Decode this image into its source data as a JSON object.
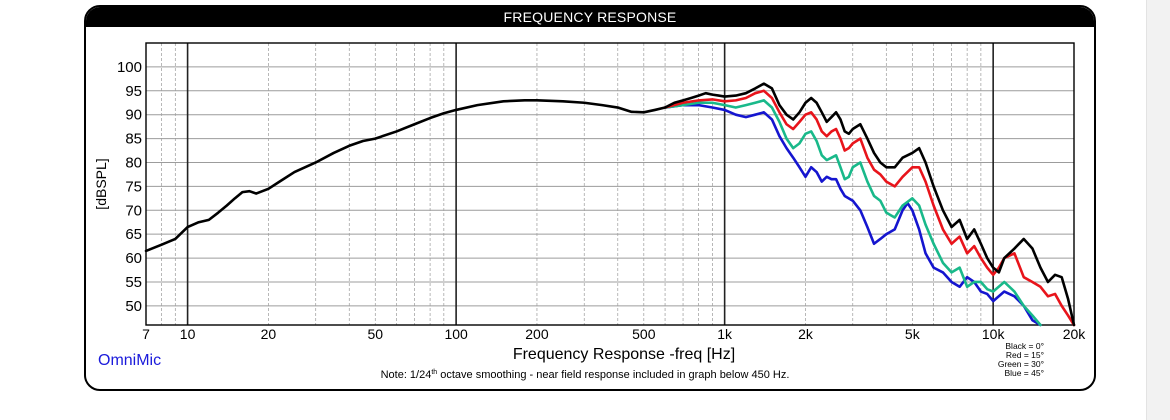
{
  "header": {
    "title": "FREQUENCY RESPONSE"
  },
  "brand": {
    "label": "OmniMic",
    "color": "#1a1adb"
  },
  "note": {
    "prefix": "Note: 1/24",
    "superscript": "th",
    "suffix": " octave smoothing - near field response included in graph below 450 Hz."
  },
  "legend": [
    {
      "label": "Black = 0°",
      "color": "#000000"
    },
    {
      "label": "Red = 15°",
      "color": "#e8141b"
    },
    {
      "label": "Green = 30°",
      "color": "#19b98a"
    },
    {
      "label": "Blue = 45°",
      "color": "#1515cf"
    }
  ],
  "chart_data": {
    "type": "line",
    "xlabel": "Frequency Response -freq [Hz]",
    "ylabel": "[dBSPL]",
    "x_scale": "log",
    "xlim": [
      7,
      20000
    ],
    "ylim": [
      46,
      105
    ],
    "x_ticks": [
      7,
      10,
      20,
      50,
      100,
      200,
      500,
      1000,
      2000,
      5000,
      10000,
      20000
    ],
    "x_tick_labels": [
      "7",
      "10",
      "20",
      "50",
      "100",
      "200",
      "500",
      "1k",
      "2k",
      "5k",
      "10k",
      "20k"
    ],
    "y_ticks": [
      50,
      55,
      60,
      65,
      70,
      75,
      80,
      85,
      90,
      95,
      100
    ],
    "y_tick_labels": [
      "50",
      "55",
      "60",
      "65",
      "70",
      "75",
      "80",
      "85",
      "90",
      "95",
      "100"
    ],
    "grid": true,
    "legend_position": "bottom-right",
    "series": [
      {
        "name": "Black = 0°",
        "color": "#000000",
        "points": [
          [
            7,
            61.5
          ],
          [
            8,
            62.8
          ],
          [
            9,
            64
          ],
          [
            10,
            66.5
          ],
          [
            11,
            67.5
          ],
          [
            12,
            68
          ],
          [
            13,
            69.5
          ],
          [
            14,
            71
          ],
          [
            15,
            72.5
          ],
          [
            16,
            73.8
          ],
          [
            17,
            74
          ],
          [
            18,
            73.5
          ],
          [
            20,
            74.5
          ],
          [
            22,
            76
          ],
          [
            25,
            78
          ],
          [
            30,
            80
          ],
          [
            35,
            82
          ],
          [
            40,
            83.5
          ],
          [
            45,
            84.5
          ],
          [
            50,
            85
          ],
          [
            60,
            86.5
          ],
          [
            70,
            88
          ],
          [
            80,
            89.3
          ],
          [
            90,
            90.3
          ],
          [
            100,
            91
          ],
          [
            120,
            92
          ],
          [
            150,
            92.8
          ],
          [
            180,
            93
          ],
          [
            200,
            93
          ],
          [
            250,
            92.8
          ],
          [
            300,
            92.5
          ],
          [
            350,
            92
          ],
          [
            400,
            91.5
          ],
          [
            450,
            90.6
          ],
          [
            500,
            90.5
          ],
          [
            550,
            91
          ],
          [
            600,
            91.5
          ],
          [
            650,
            92.5
          ],
          [
            700,
            93
          ],
          [
            750,
            93.5
          ],
          [
            800,
            94
          ],
          [
            850,
            94.5
          ],
          [
            900,
            94.2
          ],
          [
            950,
            94
          ],
          [
            1000,
            93.8
          ],
          [
            1100,
            94
          ],
          [
            1200,
            94.5
          ],
          [
            1300,
            95.5
          ],
          [
            1400,
            96.5
          ],
          [
            1500,
            95.5
          ],
          [
            1600,
            92
          ],
          [
            1700,
            90
          ],
          [
            1800,
            89
          ],
          [
            1900,
            90.5
          ],
          [
            2000,
            92.5
          ],
          [
            2100,
            93.5
          ],
          [
            2200,
            92.5
          ],
          [
            2300,
            90.5
          ],
          [
            2400,
            88.5
          ],
          [
            2500,
            89.5
          ],
          [
            2600,
            90.5
          ],
          [
            2700,
            89
          ],
          [
            2800,
            86.5
          ],
          [
            2900,
            86
          ],
          [
            3000,
            87
          ],
          [
            3200,
            88
          ],
          [
            3400,
            85
          ],
          [
            3600,
            82
          ],
          [
            3800,
            80
          ],
          [
            4000,
            79
          ],
          [
            4300,
            79
          ],
          [
            4600,
            81
          ],
          [
            5000,
            82
          ],
          [
            5300,
            83
          ],
          [
            5600,
            80
          ],
          [
            6000,
            75
          ],
          [
            6500,
            70
          ],
          [
            7000,
            66.5
          ],
          [
            7500,
            68
          ],
          [
            8000,
            64
          ],
          [
            8500,
            66
          ],
          [
            9000,
            63
          ],
          [
            9500,
            60
          ],
          [
            10000,
            58
          ],
          [
            10500,
            57
          ],
          [
            11000,
            60
          ],
          [
            12000,
            62
          ],
          [
            13000,
            64
          ],
          [
            14000,
            62
          ],
          [
            15000,
            58
          ],
          [
            16000,
            55
          ],
          [
            17000,
            56.5
          ],
          [
            18000,
            56
          ],
          [
            19000,
            51.5
          ],
          [
            20000,
            46
          ]
        ]
      },
      {
        "name": "Red = 15°",
        "color": "#e8141b",
        "points": [
          [
            600,
            91.5
          ],
          [
            700,
            92.5
          ],
          [
            800,
            93
          ],
          [
            900,
            93.2
          ],
          [
            1000,
            92.8
          ],
          [
            1100,
            93
          ],
          [
            1200,
            93.5
          ],
          [
            1300,
            94.5
          ],
          [
            1400,
            95
          ],
          [
            1500,
            93.5
          ],
          [
            1600,
            90.5
          ],
          [
            1700,
            88
          ],
          [
            1800,
            87
          ],
          [
            1900,
            88.5
          ],
          [
            2000,
            90
          ],
          [
            2100,
            90.5
          ],
          [
            2200,
            89
          ],
          [
            2300,
            86.5
          ],
          [
            2400,
            85.5
          ],
          [
            2500,
            86.5
          ],
          [
            2600,
            87
          ],
          [
            2700,
            85
          ],
          [
            2800,
            82.5
          ],
          [
            2900,
            83
          ],
          [
            3000,
            84
          ],
          [
            3200,
            85
          ],
          [
            3400,
            81
          ],
          [
            3600,
            78.5
          ],
          [
            3800,
            77.5
          ],
          [
            4000,
            76
          ],
          [
            4300,
            75
          ],
          [
            4600,
            77
          ],
          [
            5000,
            79
          ],
          [
            5300,
            79
          ],
          [
            5600,
            76
          ],
          [
            6000,
            71
          ],
          [
            6500,
            66
          ],
          [
            7000,
            63
          ],
          [
            7500,
            64.5
          ],
          [
            8000,
            61
          ],
          [
            8500,
            62.5
          ],
          [
            9000,
            60
          ],
          [
            9500,
            58
          ],
          [
            10000,
            56.5
          ],
          [
            10500,
            58
          ],
          [
            11000,
            60
          ],
          [
            12000,
            61
          ],
          [
            13000,
            56
          ],
          [
            14000,
            55
          ],
          [
            15000,
            54
          ],
          [
            16000,
            52
          ],
          [
            17000,
            52.5
          ],
          [
            18000,
            50
          ],
          [
            19000,
            48
          ],
          [
            20000,
            46
          ]
        ]
      },
      {
        "name": "Green = 30°",
        "color": "#19b98a",
        "points": [
          [
            600,
            91.5
          ],
          [
            700,
            92
          ],
          [
            800,
            92.5
          ],
          [
            900,
            92.5
          ],
          [
            1000,
            92
          ],
          [
            1100,
            91.5
          ],
          [
            1200,
            92
          ],
          [
            1300,
            92.5
          ],
          [
            1400,
            93
          ],
          [
            1500,
            91.5
          ],
          [
            1600,
            88.5
          ],
          [
            1700,
            85
          ],
          [
            1800,
            83
          ],
          [
            1900,
            84
          ],
          [
            2000,
            86
          ],
          [
            2100,
            86.5
          ],
          [
            2200,
            84.5
          ],
          [
            2300,
            81.5
          ],
          [
            2400,
            80.5
          ],
          [
            2500,
            81
          ],
          [
            2600,
            81.5
          ],
          [
            2700,
            79
          ],
          [
            2800,
            76.5
          ],
          [
            2900,
            77
          ],
          [
            3000,
            79
          ],
          [
            3200,
            80
          ],
          [
            3400,
            76
          ],
          [
            3600,
            73
          ],
          [
            3800,
            72
          ],
          [
            4000,
            69.5
          ],
          [
            4300,
            68.5
          ],
          [
            4600,
            71
          ],
          [
            5000,
            72.5
          ],
          [
            5300,
            71
          ],
          [
            5600,
            67
          ],
          [
            6000,
            63
          ],
          [
            6500,
            59
          ],
          [
            7000,
            57
          ],
          [
            7500,
            58
          ],
          [
            8000,
            54
          ],
          [
            8500,
            55
          ],
          [
            9000,
            55
          ],
          [
            9500,
            53.5
          ],
          [
            10000,
            53
          ],
          [
            11000,
            55
          ],
          [
            12000,
            53
          ],
          [
            13000,
            50
          ],
          [
            14000,
            48
          ],
          [
            15000,
            46
          ]
        ]
      },
      {
        "name": "Blue = 45°",
        "color": "#1515cf",
        "points": [
          [
            600,
            91.5
          ],
          [
            700,
            92
          ],
          [
            800,
            92
          ],
          [
            900,
            91.5
          ],
          [
            1000,
            91
          ],
          [
            1100,
            90
          ],
          [
            1200,
            89.5
          ],
          [
            1300,
            90
          ],
          [
            1400,
            90.5
          ],
          [
            1500,
            89
          ],
          [
            1600,
            85.5
          ],
          [
            1700,
            83
          ],
          [
            1800,
            81
          ],
          [
            1900,
            79
          ],
          [
            2000,
            77
          ],
          [
            2100,
            79
          ],
          [
            2200,
            78
          ],
          [
            2300,
            76
          ],
          [
            2400,
            77
          ],
          [
            2500,
            76.5
          ],
          [
            2600,
            76.5
          ],
          [
            2700,
            74.5
          ],
          [
            2800,
            73
          ],
          [
            3000,
            72
          ],
          [
            3200,
            70
          ],
          [
            3400,
            66.5
          ],
          [
            3600,
            63
          ],
          [
            3800,
            64
          ],
          [
            4000,
            65
          ],
          [
            4300,
            66
          ],
          [
            4600,
            70
          ],
          [
            4800,
            71.5
          ],
          [
            5000,
            70
          ],
          [
            5300,
            66
          ],
          [
            5600,
            61
          ],
          [
            6000,
            58
          ],
          [
            6500,
            57
          ],
          [
            7000,
            55
          ],
          [
            7500,
            54
          ],
          [
            8000,
            56
          ],
          [
            8500,
            55
          ],
          [
            9000,
            53
          ],
          [
            9500,
            52.5
          ],
          [
            10000,
            51
          ],
          [
            11000,
            53
          ],
          [
            12000,
            52
          ],
          [
            13000,
            50
          ],
          [
            14000,
            47
          ],
          [
            15000,
            46
          ]
        ]
      }
    ]
  }
}
